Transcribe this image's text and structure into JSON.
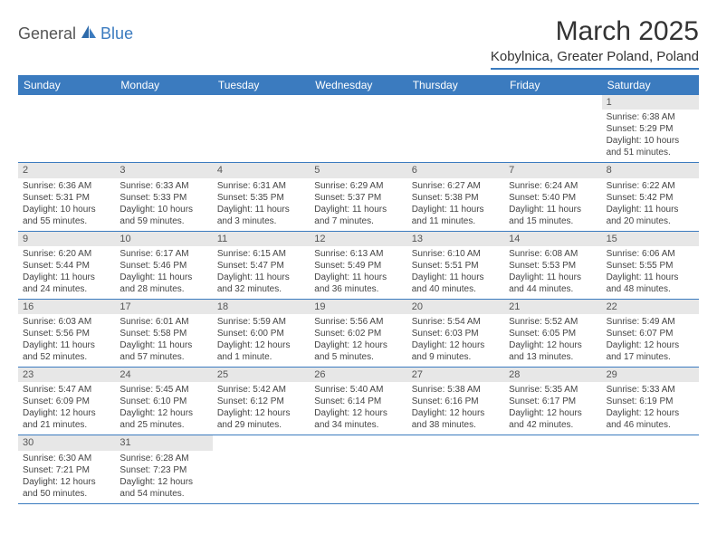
{
  "logo": {
    "part1": "General",
    "part2": "Blue"
  },
  "title": "March 2025",
  "location": "Kobylnica, Greater Poland, Poland",
  "day_names": [
    "Sunday",
    "Monday",
    "Tuesday",
    "Wednesday",
    "Thursday",
    "Friday",
    "Saturday"
  ],
  "colors": {
    "accent": "#3b7bbf",
    "header_bg": "#3b7bbf",
    "daynum_bg": "#e7e7e7"
  },
  "weeks": [
    [
      null,
      null,
      null,
      null,
      null,
      null,
      {
        "n": "1",
        "sr": "Sunrise: 6:38 AM",
        "ss": "Sunset: 5:29 PM",
        "d1": "Daylight: 10 hours",
        "d2": "and 51 minutes."
      }
    ],
    [
      {
        "n": "2",
        "sr": "Sunrise: 6:36 AM",
        "ss": "Sunset: 5:31 PM",
        "d1": "Daylight: 10 hours",
        "d2": "and 55 minutes."
      },
      {
        "n": "3",
        "sr": "Sunrise: 6:33 AM",
        "ss": "Sunset: 5:33 PM",
        "d1": "Daylight: 10 hours",
        "d2": "and 59 minutes."
      },
      {
        "n": "4",
        "sr": "Sunrise: 6:31 AM",
        "ss": "Sunset: 5:35 PM",
        "d1": "Daylight: 11 hours",
        "d2": "and 3 minutes."
      },
      {
        "n": "5",
        "sr": "Sunrise: 6:29 AM",
        "ss": "Sunset: 5:37 PM",
        "d1": "Daylight: 11 hours",
        "d2": "and 7 minutes."
      },
      {
        "n": "6",
        "sr": "Sunrise: 6:27 AM",
        "ss": "Sunset: 5:38 PM",
        "d1": "Daylight: 11 hours",
        "d2": "and 11 minutes."
      },
      {
        "n": "7",
        "sr": "Sunrise: 6:24 AM",
        "ss": "Sunset: 5:40 PM",
        "d1": "Daylight: 11 hours",
        "d2": "and 15 minutes."
      },
      {
        "n": "8",
        "sr": "Sunrise: 6:22 AM",
        "ss": "Sunset: 5:42 PM",
        "d1": "Daylight: 11 hours",
        "d2": "and 20 minutes."
      }
    ],
    [
      {
        "n": "9",
        "sr": "Sunrise: 6:20 AM",
        "ss": "Sunset: 5:44 PM",
        "d1": "Daylight: 11 hours",
        "d2": "and 24 minutes."
      },
      {
        "n": "10",
        "sr": "Sunrise: 6:17 AM",
        "ss": "Sunset: 5:46 PM",
        "d1": "Daylight: 11 hours",
        "d2": "and 28 minutes."
      },
      {
        "n": "11",
        "sr": "Sunrise: 6:15 AM",
        "ss": "Sunset: 5:47 PM",
        "d1": "Daylight: 11 hours",
        "d2": "and 32 minutes."
      },
      {
        "n": "12",
        "sr": "Sunrise: 6:13 AM",
        "ss": "Sunset: 5:49 PM",
        "d1": "Daylight: 11 hours",
        "d2": "and 36 minutes."
      },
      {
        "n": "13",
        "sr": "Sunrise: 6:10 AM",
        "ss": "Sunset: 5:51 PM",
        "d1": "Daylight: 11 hours",
        "d2": "and 40 minutes."
      },
      {
        "n": "14",
        "sr": "Sunrise: 6:08 AM",
        "ss": "Sunset: 5:53 PM",
        "d1": "Daylight: 11 hours",
        "d2": "and 44 minutes."
      },
      {
        "n": "15",
        "sr": "Sunrise: 6:06 AM",
        "ss": "Sunset: 5:55 PM",
        "d1": "Daylight: 11 hours",
        "d2": "and 48 minutes."
      }
    ],
    [
      {
        "n": "16",
        "sr": "Sunrise: 6:03 AM",
        "ss": "Sunset: 5:56 PM",
        "d1": "Daylight: 11 hours",
        "d2": "and 52 minutes."
      },
      {
        "n": "17",
        "sr": "Sunrise: 6:01 AM",
        "ss": "Sunset: 5:58 PM",
        "d1": "Daylight: 11 hours",
        "d2": "and 57 minutes."
      },
      {
        "n": "18",
        "sr": "Sunrise: 5:59 AM",
        "ss": "Sunset: 6:00 PM",
        "d1": "Daylight: 12 hours",
        "d2": "and 1 minute."
      },
      {
        "n": "19",
        "sr": "Sunrise: 5:56 AM",
        "ss": "Sunset: 6:02 PM",
        "d1": "Daylight: 12 hours",
        "d2": "and 5 minutes."
      },
      {
        "n": "20",
        "sr": "Sunrise: 5:54 AM",
        "ss": "Sunset: 6:03 PM",
        "d1": "Daylight: 12 hours",
        "d2": "and 9 minutes."
      },
      {
        "n": "21",
        "sr": "Sunrise: 5:52 AM",
        "ss": "Sunset: 6:05 PM",
        "d1": "Daylight: 12 hours",
        "d2": "and 13 minutes."
      },
      {
        "n": "22",
        "sr": "Sunrise: 5:49 AM",
        "ss": "Sunset: 6:07 PM",
        "d1": "Daylight: 12 hours",
        "d2": "and 17 minutes."
      }
    ],
    [
      {
        "n": "23",
        "sr": "Sunrise: 5:47 AM",
        "ss": "Sunset: 6:09 PM",
        "d1": "Daylight: 12 hours",
        "d2": "and 21 minutes."
      },
      {
        "n": "24",
        "sr": "Sunrise: 5:45 AM",
        "ss": "Sunset: 6:10 PM",
        "d1": "Daylight: 12 hours",
        "d2": "and 25 minutes."
      },
      {
        "n": "25",
        "sr": "Sunrise: 5:42 AM",
        "ss": "Sunset: 6:12 PM",
        "d1": "Daylight: 12 hours",
        "d2": "and 29 minutes."
      },
      {
        "n": "26",
        "sr": "Sunrise: 5:40 AM",
        "ss": "Sunset: 6:14 PM",
        "d1": "Daylight: 12 hours",
        "d2": "and 34 minutes."
      },
      {
        "n": "27",
        "sr": "Sunrise: 5:38 AM",
        "ss": "Sunset: 6:16 PM",
        "d1": "Daylight: 12 hours",
        "d2": "and 38 minutes."
      },
      {
        "n": "28",
        "sr": "Sunrise: 5:35 AM",
        "ss": "Sunset: 6:17 PM",
        "d1": "Daylight: 12 hours",
        "d2": "and 42 minutes."
      },
      {
        "n": "29",
        "sr": "Sunrise: 5:33 AM",
        "ss": "Sunset: 6:19 PM",
        "d1": "Daylight: 12 hours",
        "d2": "and 46 minutes."
      }
    ],
    [
      {
        "n": "30",
        "sr": "Sunrise: 6:30 AM",
        "ss": "Sunset: 7:21 PM",
        "d1": "Daylight: 12 hours",
        "d2": "and 50 minutes."
      },
      {
        "n": "31",
        "sr": "Sunrise: 6:28 AM",
        "ss": "Sunset: 7:23 PM",
        "d1": "Daylight: 12 hours",
        "d2": "and 54 minutes."
      },
      null,
      null,
      null,
      null,
      null
    ]
  ]
}
